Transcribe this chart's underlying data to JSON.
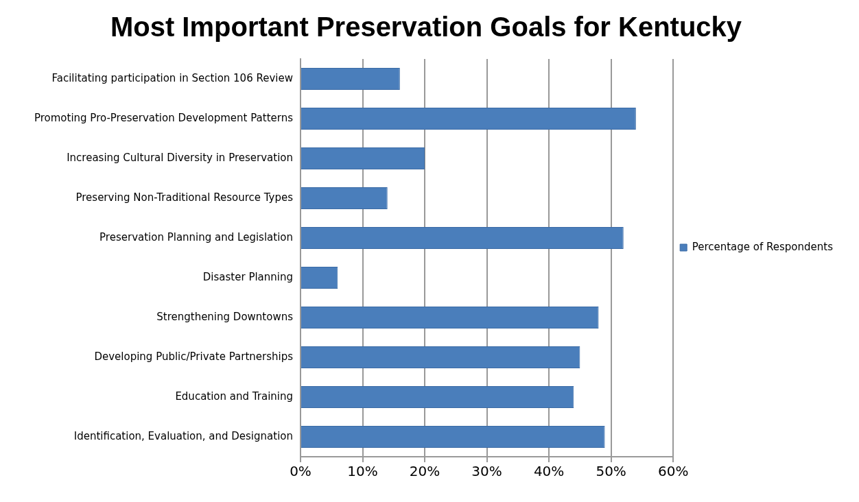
{
  "chart_data": {
    "type": "bar",
    "orientation": "horizontal",
    "title": "Most Important Preservation Goals for Kentucky",
    "categories": [
      "Facilitating participation in Section 106 Review",
      "Promoting Pro-Preservation Development Patterns",
      "Increasing Cultural Diversity in Preservation",
      "Preserving Non-Traditional Resource Types",
      "Preservation Planning and Legislation",
      "Disaster Planning",
      "Strengthening Downtowns",
      "Developing Public/Private Partnerships",
      "Education and Training",
      "Identification, Evaluation, and Designation"
    ],
    "series": [
      {
        "name": "Percentage of Respondents",
        "color": "#4a7ebb",
        "values": [
          16,
          54,
          20,
          14,
          52,
          6,
          48,
          45,
          44,
          49
        ]
      }
    ],
    "xlim": [
      0,
      60
    ],
    "xticks": [
      {
        "value": 0,
        "label": "0%"
      },
      {
        "value": 10,
        "label": "10%"
      },
      {
        "value": 20,
        "label": "20%"
      },
      {
        "value": 30,
        "label": "30%"
      },
      {
        "value": 40,
        "label": "40%"
      },
      {
        "value": 50,
        "label": "50%"
      },
      {
        "value": 60,
        "label": "60%"
      }
    ],
    "grid": "x",
    "legend": "right"
  }
}
